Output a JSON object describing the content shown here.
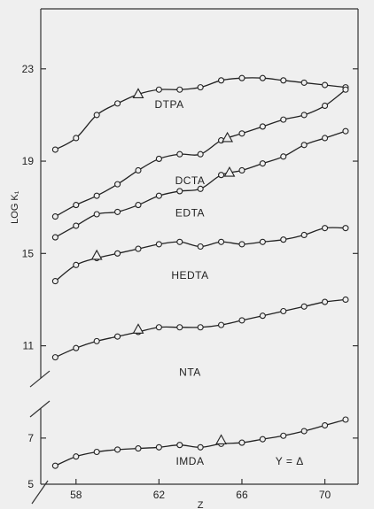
{
  "chart_data": {
    "type": "line",
    "title": "",
    "xlabel": "Z",
    "ylabel": "LOG K₁",
    "xlim": [
      56.3,
      71.6
    ],
    "ylim": [
      5,
      25.6
    ],
    "y_axis_break": [
      8.3,
      9.6
    ],
    "x_ticks": [
      58,
      62,
      66,
      70
    ],
    "x_tick_labels": [
      "58",
      "62",
      "66",
      "70"
    ],
    "y_ticks": [
      7,
      11,
      15,
      19,
      23
    ],
    "y_tick_labels": [
      "7",
      "11",
      "15",
      "19",
      "23"
    ],
    "y_extra_tick_labels": [
      {
        "value": 5,
        "label": "5"
      }
    ],
    "grid": false,
    "legend": "none",
    "note": {
      "text": "Y = Δ",
      "x": 68.3,
      "y": 5.85
    },
    "series": [
      {
        "name": "DTPA",
        "label_pos": [
          62.5,
          21.3
        ],
        "x": [
          57,
          58,
          59,
          60,
          61,
          62,
          63,
          64,
          65,
          66,
          67,
          68,
          69,
          70,
          71
        ],
        "y": [
          19.5,
          20.0,
          21.0,
          21.5,
          21.9,
          22.1,
          22.1,
          22.2,
          22.5,
          22.6,
          22.6,
          22.5,
          22.4,
          22.3,
          22.2
        ],
        "triangle": {
          "x": 61,
          "y": 21.9
        }
      },
      {
        "name": "DCTA",
        "label_pos": [
          63.5,
          18.0
        ],
        "x": [
          57,
          58,
          59,
          60,
          61,
          62,
          63,
          64,
          65,
          66,
          67,
          68,
          69,
          70,
          71
        ],
        "y": [
          16.6,
          17.1,
          17.5,
          18.0,
          18.6,
          19.1,
          19.3,
          19.3,
          19.9,
          20.2,
          20.5,
          20.8,
          21.0,
          21.4,
          22.1
        ],
        "triangle": {
          "x": 65.3,
          "y": 20.0
        }
      },
      {
        "name": "EDTA",
        "label_pos": [
          63.5,
          16.6
        ],
        "x": [
          57,
          58,
          59,
          60,
          61,
          62,
          63,
          64,
          65,
          66,
          67,
          68,
          69,
          70,
          71
        ],
        "y": [
          15.7,
          16.2,
          16.7,
          16.8,
          17.1,
          17.5,
          17.7,
          17.8,
          18.4,
          18.6,
          18.9,
          19.2,
          19.7,
          20.0,
          20.3
        ],
        "triangle": {
          "x": 65.4,
          "y": 18.5
        }
      },
      {
        "name": "HEDTA",
        "label_pos": [
          63.5,
          13.9
        ],
        "x": [
          57,
          58,
          59,
          60,
          61,
          62,
          63,
          64,
          65,
          66,
          67,
          68,
          69,
          70,
          71
        ],
        "y": [
          13.8,
          14.5,
          14.8,
          15.0,
          15.2,
          15.4,
          15.5,
          15.3,
          15.5,
          15.4,
          15.5,
          15.6,
          15.8,
          16.1,
          16.1
        ],
        "triangle": {
          "x": 59,
          "y": 14.9
        }
      },
      {
        "name": "NTA",
        "label_pos": [
          63.5,
          9.7
        ],
        "x": [
          57,
          58,
          59,
          60,
          61,
          62,
          63,
          64,
          65,
          66,
          67,
          68,
          69,
          70,
          71
        ],
        "y": [
          10.5,
          10.9,
          11.2,
          11.4,
          11.6,
          11.8,
          11.8,
          11.8,
          11.9,
          12.1,
          12.3,
          12.5,
          12.7,
          12.9,
          13.0
        ],
        "triangle": {
          "x": 61,
          "y": 11.7
        }
      },
      {
        "name": "IMDA",
        "label_pos": [
          63.5,
          5.85
        ],
        "x": [
          57,
          58,
          59,
          60,
          61,
          62,
          63,
          64,
          65,
          66,
          67,
          68,
          69,
          70,
          71
        ],
        "y": [
          5.8,
          6.2,
          6.4,
          6.5,
          6.55,
          6.6,
          6.7,
          6.6,
          6.75,
          6.8,
          6.95,
          7.1,
          7.3,
          7.55,
          7.8
        ],
        "triangle": {
          "x": 65,
          "y": 6.9
        }
      }
    ]
  }
}
